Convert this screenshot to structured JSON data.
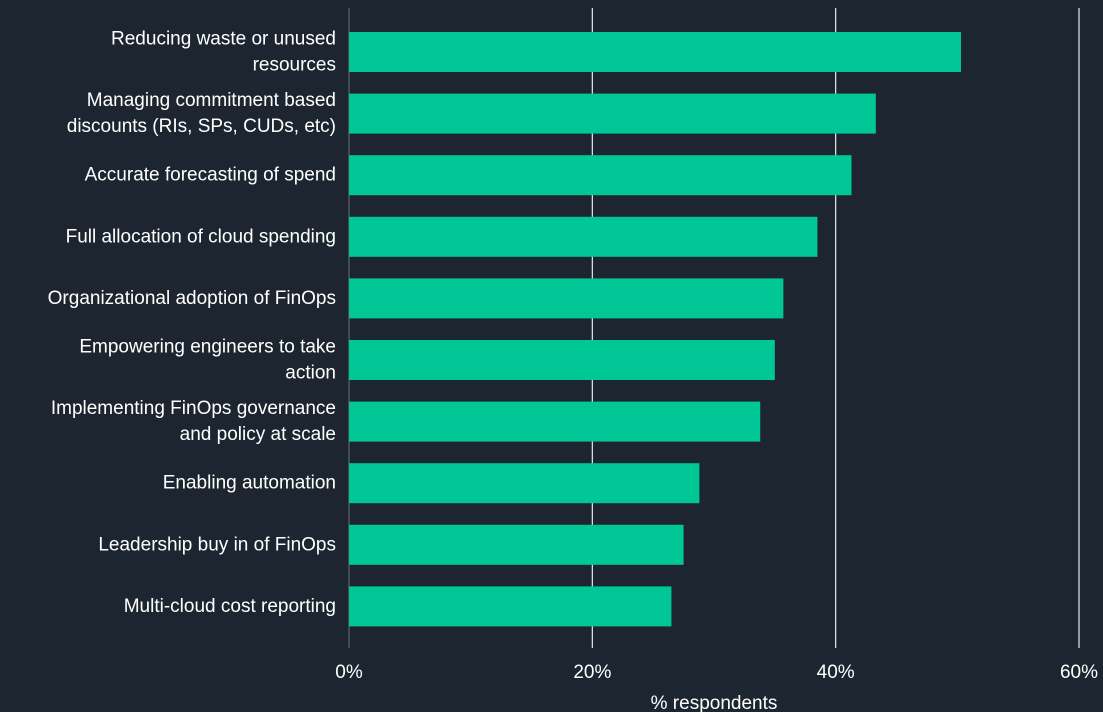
{
  "chart_data": {
    "type": "bar",
    "orientation": "horizontal",
    "categories": [
      [
        "Reducing waste or unused",
        "resources"
      ],
      [
        "Managing commitment based",
        "discounts (RIs, SPs, CUDs, etc)"
      ],
      [
        "Accurate forecasting of spend"
      ],
      [
        "Full allocation of cloud spending"
      ],
      [
        "Organizational adoption of FinOps"
      ],
      [
        "Empowering engineers to take",
        "action"
      ],
      [
        "Implementing FinOps governance",
        "and policy at scale"
      ],
      [
        "Enabling automation"
      ],
      [
        "Leadership buy in of FinOps"
      ],
      [
        "Multi-cloud cost reporting"
      ]
    ],
    "values": [
      50.3,
      43.3,
      41.3,
      38.5,
      35.7,
      35.0,
      33.8,
      28.8,
      27.5,
      26.5
    ],
    "xlabel": "% respondents",
    "xlim": [
      0,
      60
    ],
    "xticks": [
      0,
      20,
      40,
      60
    ],
    "xtick_labels": [
      "0%",
      "20%",
      "40%",
      "60%"
    ],
    "grid": "vertical",
    "legend": "none"
  },
  "colors": {
    "background": "#1d2630",
    "bar": "#00c795",
    "grid": "#ffffff",
    "text": "#ffffff"
  }
}
